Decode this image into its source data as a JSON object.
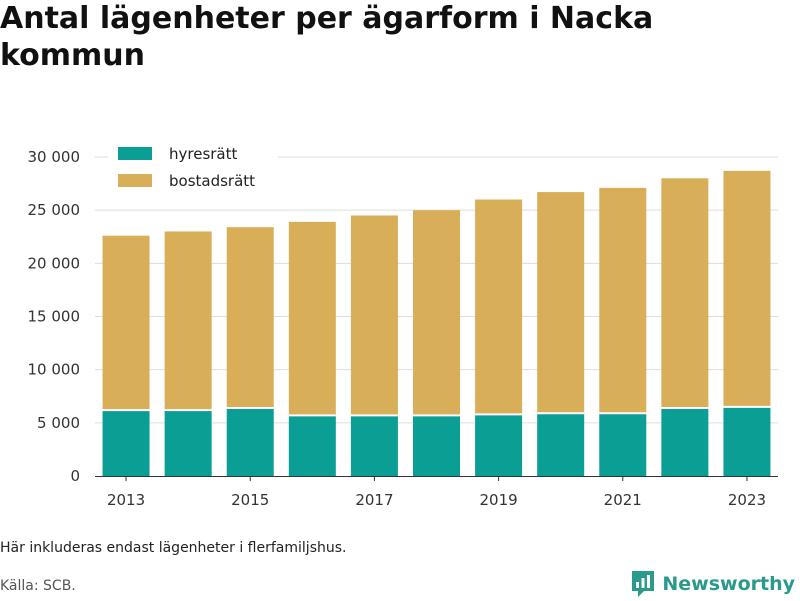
{
  "header": {
    "title": "Antal lägenheter per ägarform i Nacka kommun"
  },
  "footer": {
    "note": "Här inkluderas endast lägenheter i flerfamiljshus.",
    "source": "Källa: SCB.",
    "brand": "Newsworthy",
    "brand_icon": "bar-chart-logo-icon",
    "brand_color": "#2a9a8a"
  },
  "chart_data": {
    "type": "bar",
    "stacked": true,
    "title": "Antal lägenheter per ägarform i Nacka kommun",
    "xlabel": "",
    "ylabel": "",
    "categories": [
      "2013",
      "2014",
      "2015",
      "2016",
      "2017",
      "2018",
      "2019",
      "2020",
      "2021",
      "2022",
      "2023"
    ],
    "x_tick_labels": [
      "2013",
      "2015",
      "2017",
      "2019",
      "2021",
      "2023"
    ],
    "series": [
      {
        "name": "hyresrätt",
        "color": "#0a9e94",
        "values": [
          6200,
          6200,
          6400,
          5700,
          5700,
          5700,
          5800,
          5900,
          5900,
          6400,
          6500
        ]
      },
      {
        "name": "bostadsrätt",
        "color": "#d9ae58",
        "values": [
          16400,
          16800,
          17000,
          18200,
          18800,
          19300,
          20200,
          20800,
          21200,
          21600,
          22200
        ]
      }
    ],
    "ylim": [
      0,
      30000
    ],
    "y_ticks": [
      0,
      5000,
      10000,
      15000,
      20000,
      25000,
      30000
    ],
    "y_tick_labels": [
      "0",
      "5 000",
      "10 000",
      "15 000",
      "20 000",
      "25 000",
      "30 000"
    ],
    "grid": true,
    "legend_position": "top-left"
  }
}
